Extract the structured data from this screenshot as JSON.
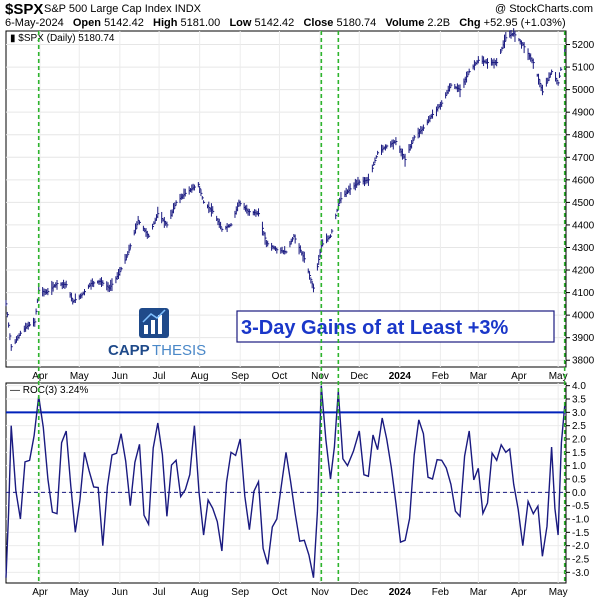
{
  "header": {
    "ticker": "$SPX",
    "name": "S&P 500 Large Cap Index",
    "exchange": "INDX",
    "credit": "@ StockCharts.com",
    "date": "6-May-2024",
    "open_label": "Open",
    "open": "5142.42",
    "high_label": "High",
    "high": "5181.00",
    "low_label": "Low",
    "low": "5142.42",
    "close_label": "Close",
    "close": "5180.74",
    "volume_label": "Volume",
    "volume": "2.2B",
    "chg_label": "Chg",
    "chg": "+52.95 (+1.03%)"
  },
  "logo": {
    "text_a": "CAPP",
    "text_b": "THESIS"
  },
  "annotation": "3-Day Gains of at Least +3%",
  "colors": {
    "price": "#1a1a80",
    "roc": "#1a1a80",
    "threshold": "#0022bb",
    "marker": "#2db52d",
    "logo": "#1f4a8a",
    "annotation": "#1a37c9"
  },
  "chart_data": [
    {
      "type": "line",
      "title": "$SPX (Daily) 5180.74",
      "style": "ohlc-bars",
      "x_tick_labels": [
        "Apr",
        "May",
        "Jun",
        "Jul",
        "Aug",
        "Sep",
        "Oct",
        "Nov",
        "Dec",
        "2024",
        "Feb",
        "Mar",
        "Apr",
        "May"
      ],
      "y_ticks": [
        3800,
        3900,
        4000,
        4100,
        4200,
        4300,
        4400,
        4500,
        4600,
        4700,
        4800,
        4900,
        5000,
        5100,
        5200
      ],
      "ylim": [
        3770,
        5260
      ],
      "xlim": [
        "2023-03-06",
        "2024-05-07"
      ],
      "series": [
        {
          "x": [
            "2023-03-06",
            "2023-03-10",
            "2023-03-13",
            "2023-03-17",
            "2023-03-22",
            "2023-03-28",
            "2023-03-31",
            "2023-04-06",
            "2023-04-14",
            "2023-04-21",
            "2023-04-26",
            "2023-05-03",
            "2023-05-10",
            "2023-05-17",
            "2023-05-24",
            "2023-05-31",
            "2023-06-07",
            "2023-06-15",
            "2023-06-23",
            "2023-06-30",
            "2023-07-07",
            "2023-07-14",
            "2023-07-21",
            "2023-07-31",
            "2023-08-04",
            "2023-08-11",
            "2023-08-18",
            "2023-08-25",
            "2023-08-31",
            "2023-09-07",
            "2023-09-15",
            "2023-09-21",
            "2023-09-29",
            "2023-10-06",
            "2023-10-12",
            "2023-10-20",
            "2023-10-27",
            "2023-11-02",
            "2023-11-09",
            "2023-11-16",
            "2023-11-24",
            "2023-12-01",
            "2023-12-08",
            "2023-12-15",
            "2023-12-22",
            "2023-12-29",
            "2024-01-05",
            "2024-01-12",
            "2024-01-19",
            "2024-01-26",
            "2024-02-02",
            "2024-02-09",
            "2024-02-16",
            "2024-02-23",
            "2024-03-01",
            "2024-03-08",
            "2024-03-15",
            "2024-03-22",
            "2024-03-28",
            "2024-04-04",
            "2024-04-12",
            "2024-04-19",
            "2024-04-26",
            "2024-05-01",
            "2024-05-06"
          ],
          "values": [
            4050,
            3860,
            3880,
            3920,
            3950,
            3970,
            4110,
            4100,
            4140,
            4135,
            4060,
            4090,
            4140,
            4150,
            4120,
            4180,
            4270,
            4420,
            4350,
            4450,
            4400,
            4500,
            4540,
            4580,
            4500,
            4460,
            4380,
            4400,
            4500,
            4460,
            4450,
            4320,
            4290,
            4280,
            4350,
            4250,
            4120,
            4310,
            4350,
            4510,
            4560,
            4590,
            4600,
            4720,
            4750,
            4770,
            4690,
            4790,
            4830,
            4890,
            4940,
            5020,
            5000,
            5080,
            5130,
            5120,
            5120,
            5230,
            5250,
            5200,
            5120,
            4990,
            5080,
            5030,
            5180
          ]
        }
      ]
    },
    {
      "type": "line",
      "title": "ROC(3) 3.24%",
      "x_tick_labels": [
        "Apr",
        "May",
        "Jun",
        "Jul",
        "Aug",
        "Sep",
        "Oct",
        "Nov",
        "Dec",
        "2024",
        "Feb",
        "Mar",
        "Apr",
        "May"
      ],
      "y_ticks": [
        -3.0,
        -2.5,
        -2.0,
        -1.5,
        -1.0,
        -0.5,
        0.0,
        0.5,
        1.0,
        1.5,
        2.0,
        2.5,
        3.0,
        3.5,
        4.0
      ],
      "ylim": [
        -3.4,
        4.1
      ],
      "threshold": 3.0,
      "zero_line": 0.0,
      "xlim": [
        "2023-03-06",
        "2024-05-07"
      ],
      "series": [
        {
          "x": [
            "2023-03-06",
            "2023-03-10",
            "2023-03-17",
            "2023-03-24",
            "2023-03-31",
            "2023-04-07",
            "2023-04-14",
            "2023-04-21",
            "2023-04-28",
            "2023-05-05",
            "2023-05-12",
            "2023-05-19",
            "2023-05-26",
            "2023-06-02",
            "2023-06-09",
            "2023-06-16",
            "2023-06-23",
            "2023-06-30",
            "2023-07-07",
            "2023-07-14",
            "2023-07-21",
            "2023-07-28",
            "2023-08-04",
            "2023-08-11",
            "2023-08-18",
            "2023-08-25",
            "2023-09-01",
            "2023-09-08",
            "2023-09-15",
            "2023-09-22",
            "2023-09-29",
            "2023-10-06",
            "2023-10-13",
            "2023-10-20",
            "2023-10-27",
            "2023-11-02",
            "2023-11-09",
            "2023-11-15",
            "2023-11-22",
            "2023-12-01",
            "2023-12-08",
            "2023-12-15",
            "2023-12-22",
            "2023-12-29",
            "2024-01-05",
            "2024-01-12",
            "2024-01-19",
            "2024-01-26",
            "2024-02-02",
            "2024-02-09",
            "2024-02-16",
            "2024-02-23",
            "2024-03-01",
            "2024-03-08",
            "2024-03-15",
            "2024-03-22",
            "2024-03-28",
            "2024-04-04",
            "2024-04-12",
            "2024-04-19",
            "2024-04-26",
            "2024-05-01",
            "2024-05-06"
          ],
          "values": [
            -3.2,
            2.5,
            -1.0,
            1.2,
            3.6,
            0.5,
            -0.8,
            2.3,
            -1.5,
            1.5,
            0.2,
            -2.0,
            1.4,
            2.2,
            -0.5,
            1.8,
            -1.2,
            2.6,
            -0.9,
            1.2,
            0.1,
            2.5,
            -1.6,
            -0.6,
            -2.2,
            1.5,
            2.0,
            -1.4,
            0.4,
            -2.7,
            -1.0,
            1.5,
            -0.8,
            -1.8,
            -3.2,
            4.0,
            0.5,
            3.8,
            1.0,
            2.3,
            0.6,
            1.6,
            2.0,
            -0.4,
            -1.8,
            1.4,
            2.2,
            0.5,
            1.2,
            0.3,
            -0.9,
            2.3,
            0.9,
            -0.4,
            1.2,
            1.5,
            0.3,
            -2.0,
            -0.8,
            -2.4,
            1.7,
            -1.6,
            3.24
          ]
        }
      ]
    }
  ]
}
